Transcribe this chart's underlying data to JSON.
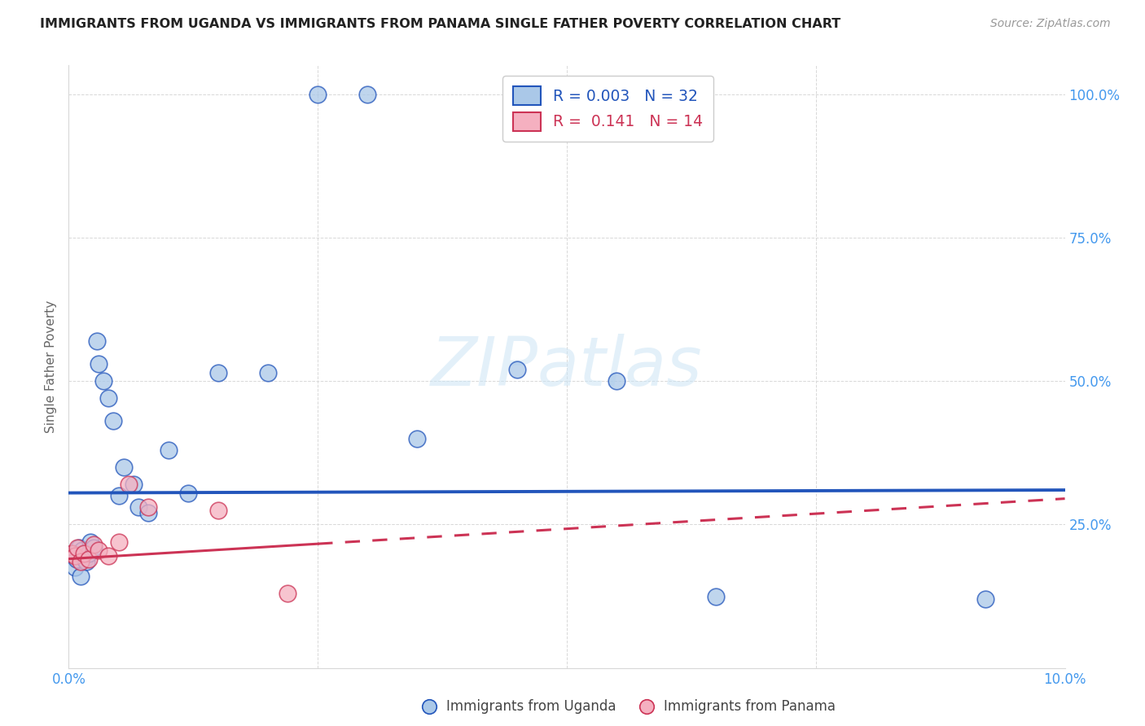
{
  "title": "IMMIGRANTS FROM UGANDA VS IMMIGRANTS FROM PANAMA SINGLE FATHER POVERTY CORRELATION CHART",
  "source": "Source: ZipAtlas.com",
  "ylabel": "Single Father Poverty",
  "xlim": [
    0.0,
    10.0
  ],
  "ylim": [
    0.0,
    105.0
  ],
  "uganda_color": "#aac8e8",
  "panama_color": "#f5b0c0",
  "trend_uganda_color": "#2255bb",
  "trend_panama_color": "#cc3355",
  "r_uganda": 0.003,
  "n_uganda": 32,
  "r_panama": 0.141,
  "n_panama": 14,
  "legend_label_uganda": "Immigrants from Uganda",
  "legend_label_panama": "Immigrants from Panama",
  "watermark": "ZIPatlas",
  "uganda_x": [
    0.04,
    0.06,
    0.08,
    0.1,
    0.12,
    0.14,
    0.16,
    0.18,
    0.2,
    0.22,
    0.25,
    0.28,
    0.3,
    0.35,
    0.4,
    0.45,
    0.5,
    0.55,
    0.65,
    0.7,
    0.8,
    1.0,
    1.2,
    1.5,
    2.0,
    2.5,
    3.0,
    3.5,
    4.5,
    5.5,
    6.5,
    9.2
  ],
  "uganda_y": [
    20.0,
    17.5,
    19.0,
    21.0,
    16.0,
    20.5,
    19.0,
    18.5,
    20.0,
    22.0,
    21.0,
    57.0,
    53.0,
    50.0,
    47.0,
    43.0,
    30.0,
    35.0,
    32.0,
    28.0,
    27.0,
    38.0,
    30.5,
    51.5,
    51.5,
    100.0,
    100.0,
    40.0,
    52.0,
    50.0,
    12.5,
    12.0
  ],
  "panama_x": [
    0.03,
    0.06,
    0.09,
    0.12,
    0.15,
    0.2,
    0.25,
    0.3,
    0.4,
    0.5,
    0.6,
    0.8,
    1.5,
    2.2
  ],
  "panama_y": [
    20.0,
    19.5,
    21.0,
    18.5,
    20.0,
    19.0,
    21.5,
    20.5,
    19.5,
    22.0,
    32.0,
    28.0,
    27.5,
    13.0
  ],
  "trend_ug_y0": 30.5,
  "trend_ug_y1": 31.0,
  "trend_pan_y0": 19.0,
  "trend_pan_y1": 29.5,
  "trend_pan_solid_end": 2.5,
  "bg_color": "#ffffff",
  "grid_color": "#d8d8d8",
  "tick_color": "#4499ee",
  "ylabel_color": "#666666",
  "title_color": "#222222",
  "source_color": "#999999"
}
